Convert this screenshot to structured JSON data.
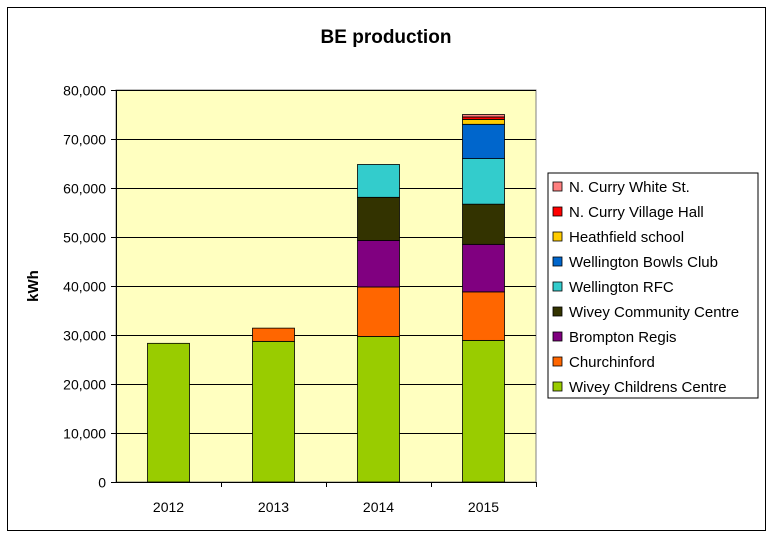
{
  "chart_data": {
    "type": "bar",
    "stacked": true,
    "title": "BE production",
    "xlabel": "",
    "ylabel": "kWh",
    "ylim": [
      0,
      80000
    ],
    "yticks": [
      "0",
      "10,000",
      "20,000",
      "30,000",
      "40,000",
      "50,000",
      "60,000",
      "70,000",
      "80,000"
    ],
    "ytick_values": [
      0,
      10000,
      20000,
      30000,
      40000,
      50000,
      60000,
      70000,
      80000
    ],
    "grid": true,
    "legend_position": "right",
    "categories": [
      "2012",
      "2013",
      "2014",
      "2015"
    ],
    "series": [
      {
        "name": "Wivey Childrens Centre",
        "color": "#99cc00",
        "values": [
          28300,
          28700,
          29700,
          28900
        ]
      },
      {
        "name": "Churchinford",
        "color": "#ff6600",
        "values": [
          0,
          2700,
          10100,
          9900
        ]
      },
      {
        "name": "Brompton Regis",
        "color": "#800080",
        "values": [
          0,
          0,
          9500,
          9700
        ]
      },
      {
        "name": "Wivey Community Centre",
        "color": "#333300",
        "values": [
          0,
          0,
          8800,
          8200
        ]
      },
      {
        "name": "Wellington RFC",
        "color": "#33cccc",
        "values": [
          0,
          0,
          6700,
          9300
        ]
      },
      {
        "name": "Wellington Bowls Club",
        "color": "#0066cc",
        "values": [
          0,
          0,
          0,
          7000
        ]
      },
      {
        "name": "Heathfield school",
        "color": "#ffcc00",
        "values": [
          0,
          0,
          0,
          1000
        ]
      },
      {
        "name": "N. Curry Village Hall",
        "color": "#ff0000",
        "values": [
          0,
          0,
          0,
          500
        ]
      },
      {
        "name": "N. Curry White St.",
        "color": "#ff8080",
        "values": [
          0,
          0,
          0,
          500
        ]
      }
    ],
    "colors": {
      "plot_background": "#ffffc0",
      "border": "#000000",
      "grid": "#000000"
    }
  }
}
